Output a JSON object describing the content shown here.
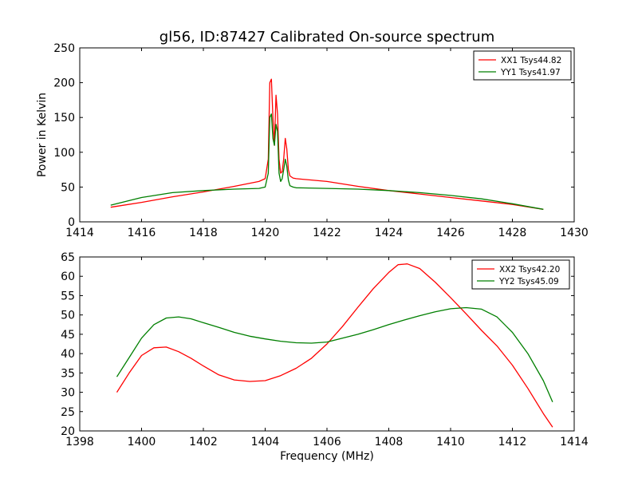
{
  "title": "gl56, ID:87427 Calibrated On-source spectrum",
  "colors": {
    "xx": "#ff0000",
    "yy": "#007f00",
    "axis": "#000000",
    "background": "#ffffff"
  },
  "chart_data": [
    {
      "type": "line",
      "title": "gl56, ID:87427 Calibrated On-source spectrum",
      "xlabel": "",
      "ylabel": "Power in Kelvin",
      "xlim": [
        1414,
        1430
      ],
      "ylim": [
        0,
        250
      ],
      "xticks": [
        "1414",
        "1416",
        "1418",
        "1420",
        "1422",
        "1424",
        "1426",
        "1428",
        "1430"
      ],
      "yticks": [
        "0",
        "50",
        "100",
        "150",
        "200",
        "250"
      ],
      "grid": false,
      "legend_position": "top-right",
      "series": [
        {
          "name": "XX1 Tsys44.82",
          "color": "#ff0000",
          "x": [
            1415.0,
            1416.0,
            1417.0,
            1418.0,
            1419.0,
            1419.8,
            1420.0,
            1420.1,
            1420.15,
            1420.2,
            1420.25,
            1420.3,
            1420.35,
            1420.4,
            1420.45,
            1420.5,
            1420.55,
            1420.6,
            1420.65,
            1420.7,
            1420.75,
            1420.8,
            1420.9,
            1421.0,
            1422.0,
            1423.0,
            1424.0,
            1425.0,
            1426.0,
            1427.0,
            1428.0,
            1429.0
          ],
          "y": [
            21,
            28,
            36,
            43,
            51,
            58,
            62,
            90,
            200,
            205,
            150,
            110,
            182,
            155,
            90,
            70,
            72,
            90,
            120,
            105,
            75,
            66,
            63,
            62,
            58,
            51,
            45,
            40,
            35,
            30,
            25,
            18
          ]
        },
        {
          "name": "YY1 Tsys41.97",
          "color": "#007f00",
          "x": [
            1415.0,
            1416.0,
            1417.0,
            1418.0,
            1419.0,
            1419.8,
            1420.0,
            1420.1,
            1420.15,
            1420.2,
            1420.25,
            1420.3,
            1420.35,
            1420.4,
            1420.45,
            1420.5,
            1420.55,
            1420.6,
            1420.65,
            1420.7,
            1420.75,
            1420.8,
            1420.9,
            1421.0,
            1422.0,
            1423.0,
            1424.0,
            1425.0,
            1426.0,
            1427.0,
            1428.0,
            1429.0
          ],
          "y": [
            24,
            35,
            42,
            45,
            47,
            48,
            50,
            70,
            150,
            155,
            120,
            110,
            140,
            130,
            70,
            58,
            62,
            75,
            90,
            80,
            60,
            52,
            50,
            49,
            48,
            47,
            45,
            42,
            38,
            33,
            26,
            18
          ]
        }
      ]
    },
    {
      "type": "line",
      "title": "",
      "xlabel": "Frequency (MHz)",
      "ylabel": "",
      "xlim": [
        1398,
        1414
      ],
      "ylim": [
        20,
        65
      ],
      "xticks": [
        "1398",
        "1400",
        "1402",
        "1404",
        "1406",
        "1408",
        "1410",
        "1412",
        "1414"
      ],
      "yticks": [
        "20",
        "25",
        "30",
        "35",
        "40",
        "45",
        "50",
        "55",
        "60",
        "65"
      ],
      "grid": false,
      "legend_position": "top-right",
      "series": [
        {
          "name": "XX2 Tsys42.20",
          "color": "#ff0000",
          "x": [
            1399.2,
            1399.6,
            1400.0,
            1400.4,
            1400.8,
            1401.2,
            1401.6,
            1402.0,
            1402.5,
            1403.0,
            1403.5,
            1404.0,
            1404.5,
            1405.0,
            1405.5,
            1406.0,
            1406.5,
            1407.0,
            1407.5,
            1408.0,
            1408.3,
            1408.6,
            1409.0,
            1409.5,
            1410.0,
            1410.5,
            1411.0,
            1411.5,
            1412.0,
            1412.5,
            1413.0,
            1413.3
          ],
          "y": [
            30,
            35,
            39.5,
            41.5,
            41.7,
            40.5,
            38.8,
            36.8,
            34.5,
            33.2,
            32.8,
            33.0,
            34.3,
            36.2,
            38.8,
            42.5,
            47.0,
            52.0,
            56.8,
            61.0,
            63.0,
            63.2,
            62.0,
            58.5,
            54.5,
            50.3,
            46.0,
            42.0,
            37.0,
            31.0,
            24.5,
            21.0
          ]
        },
        {
          "name": "YY2 Tsys45.09",
          "color": "#007f00",
          "x": [
            1399.2,
            1399.6,
            1400.0,
            1400.4,
            1400.8,
            1401.2,
            1401.6,
            1402.0,
            1402.5,
            1403.0,
            1403.5,
            1404.0,
            1404.5,
            1405.0,
            1405.5,
            1406.0,
            1406.5,
            1407.0,
            1407.5,
            1408.0,
            1408.5,
            1409.0,
            1409.5,
            1410.0,
            1410.5,
            1411.0,
            1411.5,
            1412.0,
            1412.5,
            1413.0,
            1413.3
          ],
          "y": [
            34,
            39,
            44,
            47.5,
            49.2,
            49.5,
            49.0,
            48.0,
            46.8,
            45.5,
            44.5,
            43.8,
            43.2,
            42.8,
            42.7,
            43.0,
            44.0,
            45.0,
            46.2,
            47.5,
            48.7,
            49.8,
            50.8,
            51.6,
            51.9,
            51.5,
            49.5,
            45.5,
            40.0,
            33.0,
            27.5
          ]
        }
      ]
    }
  ]
}
